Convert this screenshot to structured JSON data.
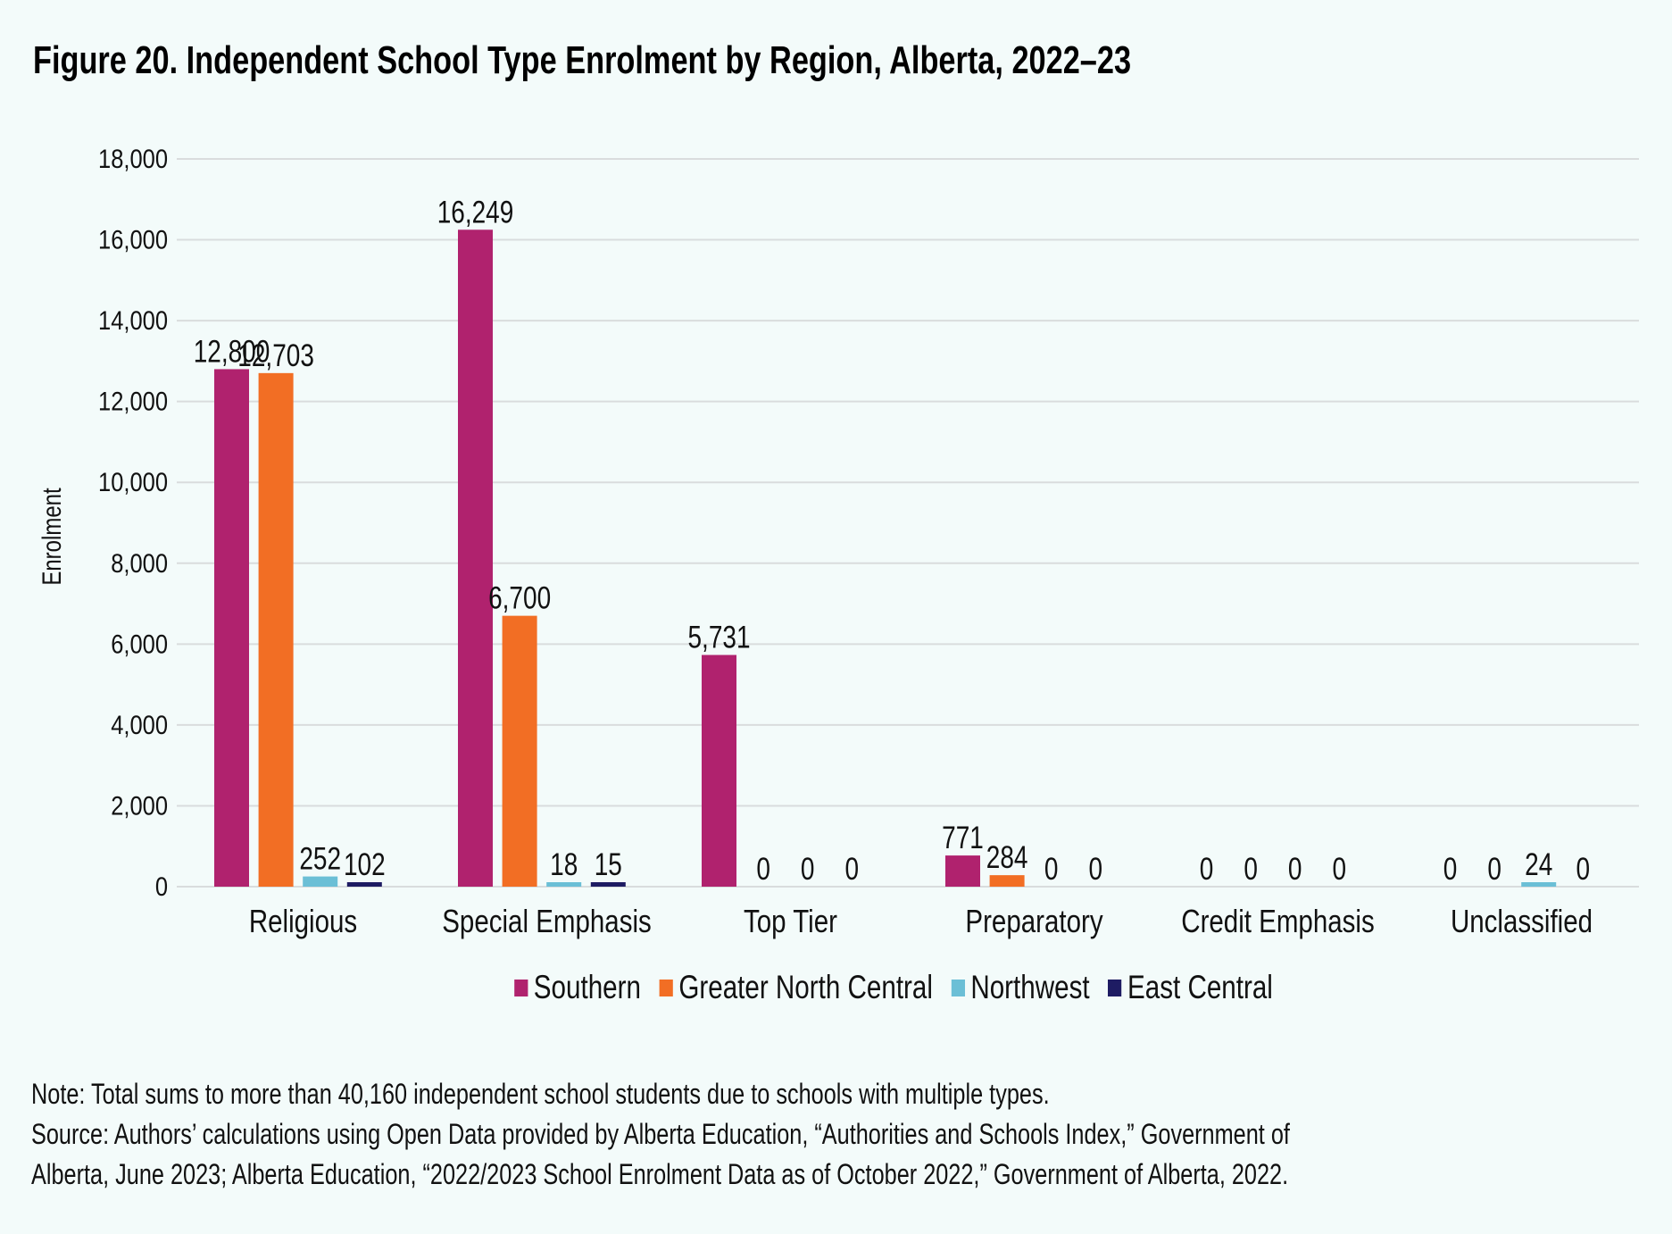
{
  "title": "Figure 20. Independent School Type Enrolment by Region, Alberta, 2022–23",
  "chart_data": {
    "type": "bar",
    "title": "Figure 20. Independent School Type Enrolment by Region, Alberta, 2022–23",
    "xlabel": "",
    "ylabel": "Enrolment",
    "ylim": [
      0,
      18000
    ],
    "yticks": [
      0,
      2000,
      4000,
      6000,
      8000,
      10000,
      12000,
      14000,
      16000,
      18000
    ],
    "ytick_labels": [
      "0",
      "2,000",
      "4,000",
      "6,000",
      "8,000",
      "10,000",
      "12,000",
      "14,000",
      "16,000",
      "18,000"
    ],
    "grid": true,
    "legend_position": "bottom",
    "categories": [
      "Religious",
      "Special Emphasis",
      "Top Tier",
      "Preparatory",
      "Credit Emphasis",
      "Unclassified"
    ],
    "series": [
      {
        "name": "Southern",
        "color": "#b0226e",
        "values": [
          12800,
          16249,
          5731,
          771,
          0,
          0
        ],
        "labels": [
          "12,800",
          "16,249",
          "5,731",
          "771",
          "0",
          "0"
        ]
      },
      {
        "name": "Greater North Central",
        "color": "#f26e24",
        "values": [
          12703,
          6700,
          0,
          284,
          0,
          0
        ],
        "labels": [
          "12,703",
          "6,700",
          "0",
          "284",
          "0",
          "0"
        ]
      },
      {
        "name": "Northwest",
        "color": "#6bbfd6",
        "values": [
          252,
          18,
          0,
          0,
          0,
          24
        ],
        "labels": [
          "252",
          "18",
          "0",
          "0",
          "0",
          "24"
        ]
      },
      {
        "name": "East Central",
        "color": "#1e1c63",
        "values": [
          102,
          15,
          0,
          0,
          0,
          0
        ],
        "labels": [
          "102",
          "15",
          "0",
          "0",
          "0",
          "0"
        ]
      }
    ]
  },
  "legend": [
    {
      "label": "Southern",
      "color": "#b0226e"
    },
    {
      "label": "Greater North Central",
      "color": "#f26e24"
    },
    {
      "label": "Northwest",
      "color": "#6bbfd6"
    },
    {
      "label": "East Central",
      "color": "#1e1c63"
    }
  ],
  "notes": {
    "line1": "Note: Total sums to more than 40,160 independent school students due to schools with multiple types.",
    "line2": "Source: Authors’ calculations using Open Data provided by Alberta Education, “Authorities and Schools Index,” Government of",
    "line3": "Alberta, June 2023; Alberta Education, “2022/2023 School Enrolment Data as of October 2022,” Government of Alberta, 2022."
  }
}
